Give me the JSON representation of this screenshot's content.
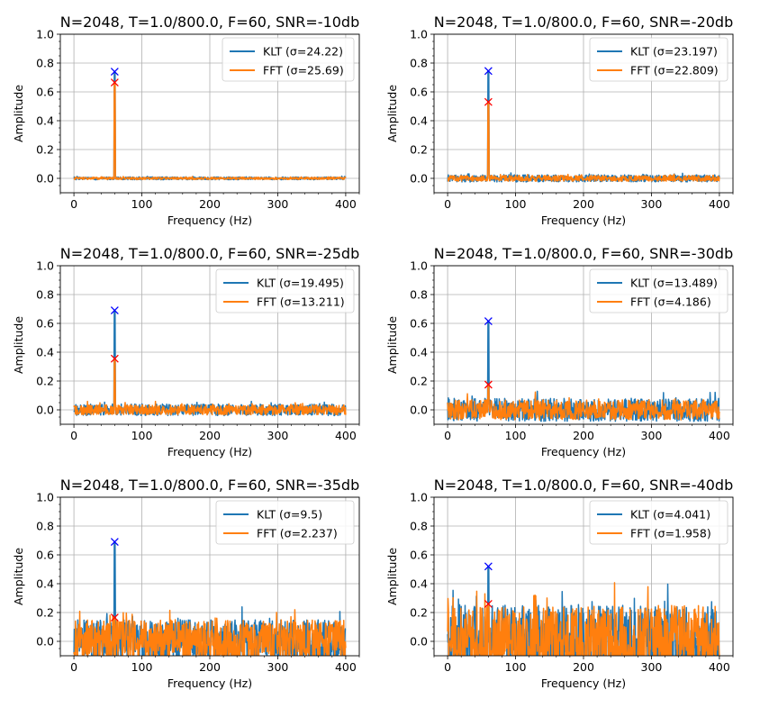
{
  "colors": {
    "klt": "#1f77b4",
    "fft": "#ff7f0e",
    "klt_marker": "#0000ff",
    "fft_marker": "#ff0000",
    "grid": "#b0b0b0"
  },
  "chart_data": [
    {
      "type": "line",
      "title": "N=2048, T=1.0/800.0, F=60, SNR=-10db",
      "xlabel": "Frequency (Hz)",
      "ylabel": "Amplitude",
      "xlim": [
        -20,
        420
      ],
      "ylim": [
        -0.1,
        1.0
      ],
      "xticks": [
        "0",
        "100",
        "200",
        "300",
        "400"
      ],
      "yticks": [
        "0.0",
        "0.2",
        "0.4",
        "0.6",
        "0.8",
        "1.0"
      ],
      "grid": true,
      "legend_position": "top-right",
      "noise": {
        "klt": 0.01,
        "fft": 0.008
      },
      "series": [
        {
          "name": "KLT (σ=24.22)",
          "peak_x": 60,
          "peak_y": 0.74
        },
        {
          "name": "FFT (σ=25.69)",
          "peak_x": 60,
          "peak_y": 0.665
        }
      ]
    },
    {
      "type": "line",
      "title": "N=2048, T=1.0/800.0, F=60, SNR=-20db",
      "xlabel": "Frequency (Hz)",
      "ylabel": "Amplitude",
      "xlim": [
        -20,
        420
      ],
      "ylim": [
        -0.1,
        1.0
      ],
      "xticks": [
        "0",
        "100",
        "200",
        "300",
        "400"
      ],
      "yticks": [
        "0.0",
        "0.2",
        "0.4",
        "0.6",
        "0.8",
        "1.0"
      ],
      "grid": true,
      "legend_position": "top-right",
      "noise": {
        "klt": 0.025,
        "fft": 0.02
      },
      "series": [
        {
          "name": "KLT (σ=23.197)",
          "peak_x": 60,
          "peak_y": 0.745
        },
        {
          "name": "FFT (σ=22.809)",
          "peak_x": 60,
          "peak_y": 0.53
        }
      ]
    },
    {
      "type": "line",
      "title": "N=2048, T=1.0/800.0, F=60, SNR=-25db",
      "xlabel": "Frequency (Hz)",
      "ylabel": "Amplitude",
      "xlim": [
        -20,
        420
      ],
      "ylim": [
        -0.1,
        1.0
      ],
      "xticks": [
        "0",
        "100",
        "200",
        "300",
        "400"
      ],
      "yticks": [
        "0.0",
        "0.2",
        "0.4",
        "0.6",
        "0.8",
        "1.0"
      ],
      "grid": true,
      "legend_position": "top-right",
      "noise": {
        "klt": 0.04,
        "fft": 0.035
      },
      "series": [
        {
          "name": "KLT (σ=19.495)",
          "peak_x": 60,
          "peak_y": 0.69
        },
        {
          "name": "FFT (σ=13.211)",
          "peak_x": 60,
          "peak_y": 0.355
        }
      ]
    },
    {
      "type": "line",
      "title": "N=2048, T=1.0/800.0, F=60, SNR=-30db",
      "xlabel": "Frequency (Hz)",
      "ylabel": "Amplitude",
      "xlim": [
        -20,
        420
      ],
      "ylim": [
        -0.1,
        1.0
      ],
      "xticks": [
        "0",
        "100",
        "200",
        "300",
        "400"
      ],
      "yticks": [
        "0.0",
        "0.2",
        "0.4",
        "0.6",
        "0.8",
        "1.0"
      ],
      "grid": true,
      "legend_position": "top-right",
      "noise": {
        "klt": 0.08,
        "fft": 0.07
      },
      "series": [
        {
          "name": "KLT (σ=13.489)",
          "peak_x": 60,
          "peak_y": 0.615
        },
        {
          "name": "FFT (σ=4.186)",
          "peak_x": 60,
          "peak_y": 0.175
        }
      ]
    },
    {
      "type": "line",
      "title": "N=2048, T=1.0/800.0, F=60, SNR=-35db",
      "xlabel": "Frequency (Hz)",
      "ylabel": "Amplitude",
      "xlim": [
        -20,
        420
      ],
      "ylim": [
        -0.1,
        1.0
      ],
      "xticks": [
        "0",
        "100",
        "200",
        "300",
        "400"
      ],
      "yticks": [
        "0.0",
        "0.2",
        "0.4",
        "0.6",
        "0.8",
        "1.0"
      ],
      "grid": true,
      "legend_position": "top-right",
      "noise": {
        "klt": 0.15,
        "fft": 0.15
      },
      "series": [
        {
          "name": "KLT (σ=9.5)",
          "peak_x": 60,
          "peak_y": 0.69
        },
        {
          "name": "FFT (σ=2.237)",
          "peak_x": 60,
          "peak_y": 0.165
        }
      ]
    },
    {
      "type": "line",
      "title": "N=2048, T=1.0/800.0, F=60, SNR=-40db",
      "xlabel": "Frequency (Hz)",
      "ylabel": "Amplitude",
      "xlim": [
        -20,
        420
      ],
      "ylim": [
        -0.1,
        1.0
      ],
      "xticks": [
        "0",
        "100",
        "200",
        "300",
        "400"
      ],
      "yticks": [
        "0.0",
        "0.2",
        "0.4",
        "0.6",
        "0.8",
        "1.0"
      ],
      "grid": true,
      "legend_position": "top-right",
      "noise": {
        "klt": 0.25,
        "fft": 0.25
      },
      "series": [
        {
          "name": "KLT (σ=4.041)",
          "peak_x": 60,
          "peak_y": 0.52
        },
        {
          "name": "FFT (σ=1.958)",
          "peak_x": 60,
          "peak_y": 0.26
        }
      ]
    }
  ]
}
